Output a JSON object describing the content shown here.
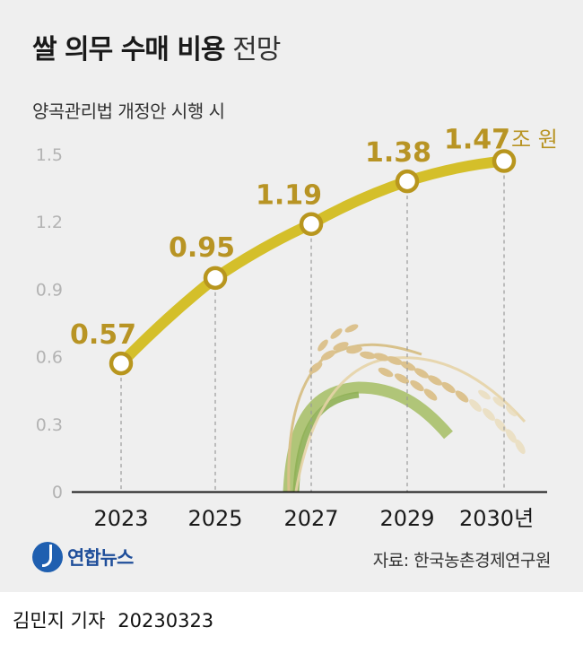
{
  "title": {
    "main": "쌀 의무 수매 비용",
    "suffix": "전망"
  },
  "subtitle": "양곡관리법 개정안 시행 시",
  "chart_data": {
    "type": "line",
    "title": "쌀 의무 수매 비용 전망",
    "subtitle": "양곡관리법 개정안 시행 시",
    "categories": [
      "2023",
      "2025",
      "2027",
      "2029",
      "2030년"
    ],
    "values": [
      0.57,
      0.95,
      1.19,
      1.38,
      1.47
    ],
    "labels": [
      "0.57",
      "0.95",
      "1.19",
      "1.38",
      "1.47"
    ],
    "unit": "조 원",
    "yticks": [
      "0",
      "0.3",
      "0.6",
      "0.9",
      "1.2",
      "1.5"
    ],
    "ylim": [
      0,
      1.5
    ],
    "xlabel": "",
    "ylabel": "",
    "grid": false,
    "colors": {
      "line": "#d4bf2a",
      "marker_stroke": "#b8961e",
      "label": "#b89424",
      "axis_text": "#b3b3b3"
    }
  },
  "logo": {
    "text": "연합뉴스"
  },
  "source": "자료: 한국농촌경제연구원",
  "byline": {
    "author": "김민지 기자",
    "date": "20230323"
  }
}
